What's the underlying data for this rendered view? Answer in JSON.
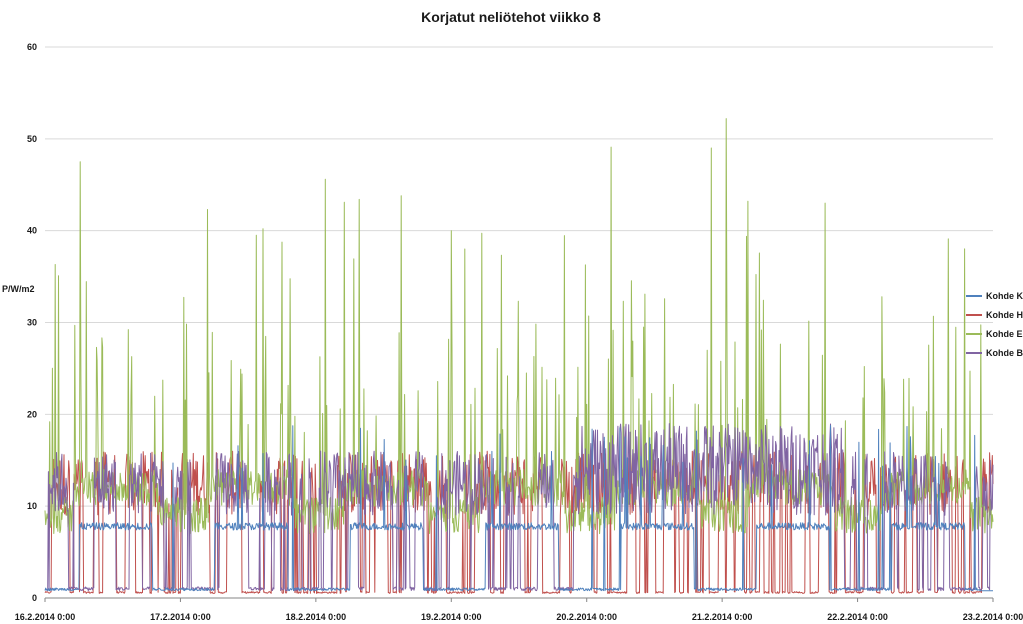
{
  "chart_data": {
    "type": "line",
    "title": "Korjatut neliötehot viikko 8",
    "xlabel": "",
    "ylabel": "P/W/m2",
    "ylim": [
      0,
      60
    ],
    "yticks": [
      0,
      10,
      20,
      30,
      40,
      50,
      60
    ],
    "xlim_days": [
      0,
      7
    ],
    "grid": true,
    "legend_position": "right",
    "categories": [
      "16.2.2014 0:00",
      "17.2.2014 0:00",
      "18.2.2014 0:00",
      "19.2.2014 0:00",
      "20.2.2014 0:00",
      "21.2.2014 0:00",
      "22.2.2014 0:00",
      "23.2.2014 0:00"
    ],
    "series": [
      {
        "name": "Kohde K",
        "color": "#4f81bd",
        "baseline": 0.8,
        "low_profile": 7.8,
        "peak_range": [
          14,
          22
        ]
      },
      {
        "name": "Kohde H",
        "color": "#c0504d",
        "baseline": 0.5,
        "low_profile": 0.5,
        "peak_range": [
          9,
          16
        ]
      },
      {
        "name": "Kohde E",
        "color": "#9bbb59",
        "baseline": 9,
        "low_profile": 12,
        "peak_range": [
          30,
          52.5
        ],
        "notable_peaks_x_days": [
          0.26,
          1.2,
          1.61,
          2.07,
          2.21,
          2.32,
          2.63,
          3.0,
          3.1,
          4.18,
          4.92,
          5.03,
          5.19,
          5.76,
          6.67
        ],
        "notable_peaks_y": [
          47.5,
          42.3,
          40.2,
          45.6,
          43.1,
          43.4,
          43.8,
          40,
          38,
          49.1,
          49,
          52.2,
          43.2,
          43,
          39.1
        ]
      },
      {
        "name": "Kohde B",
        "color": "#8064a2",
        "baseline": 0.8,
        "low_profile": 9,
        "peak_range": [
          15,
          20
        ]
      }
    ]
  }
}
